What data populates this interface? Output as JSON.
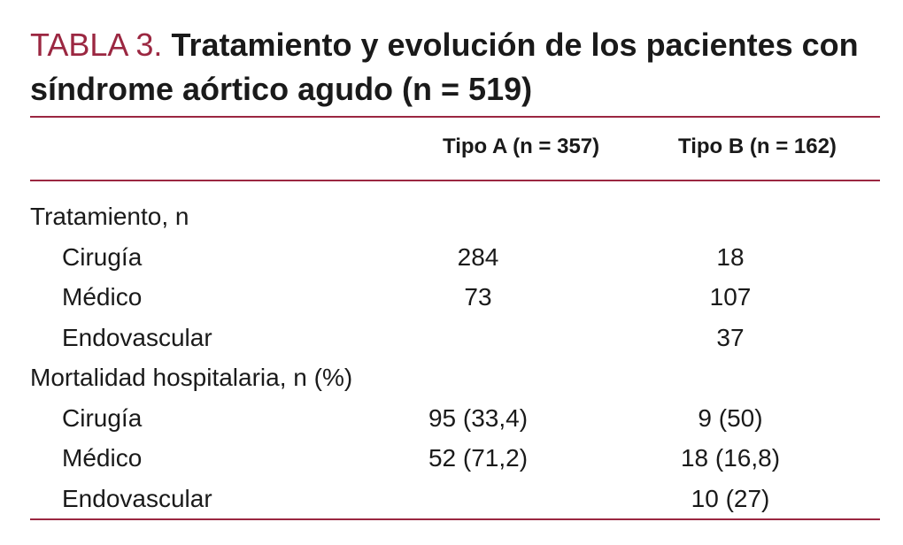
{
  "table": {
    "label": "TABLA 3.",
    "title": "Tratamiento y evolución de los pacientes con síndrome aórtico agudo (n = 519)",
    "columns": {
      "a": "Tipo A (n = 357)",
      "b": "Tipo B (n = 162)"
    },
    "rows": [
      {
        "label": "Tratamiento, n",
        "a": "",
        "b": ""
      },
      {
        "label": "Cirugía",
        "a": "284",
        "b": "18"
      },
      {
        "label": "Médico",
        "a": "73",
        "b": "107"
      },
      {
        "label": "Endovascular",
        "a": "",
        "b": "37"
      },
      {
        "label": "Mortalidad hospitalaria, n (%)",
        "a": "",
        "b": ""
      },
      {
        "label": "Cirugía",
        "a": "95 (33,4)",
        "b": "9 (50)"
      },
      {
        "label": "Médico",
        "a": "52 (71,2)",
        "b": "18 (16,8)"
      },
      {
        "label": "Endovascular",
        "a": "",
        "b": "10 (27)"
      }
    ]
  },
  "colors": {
    "accent": "#9b2741",
    "text": "#1a1a1a"
  }
}
